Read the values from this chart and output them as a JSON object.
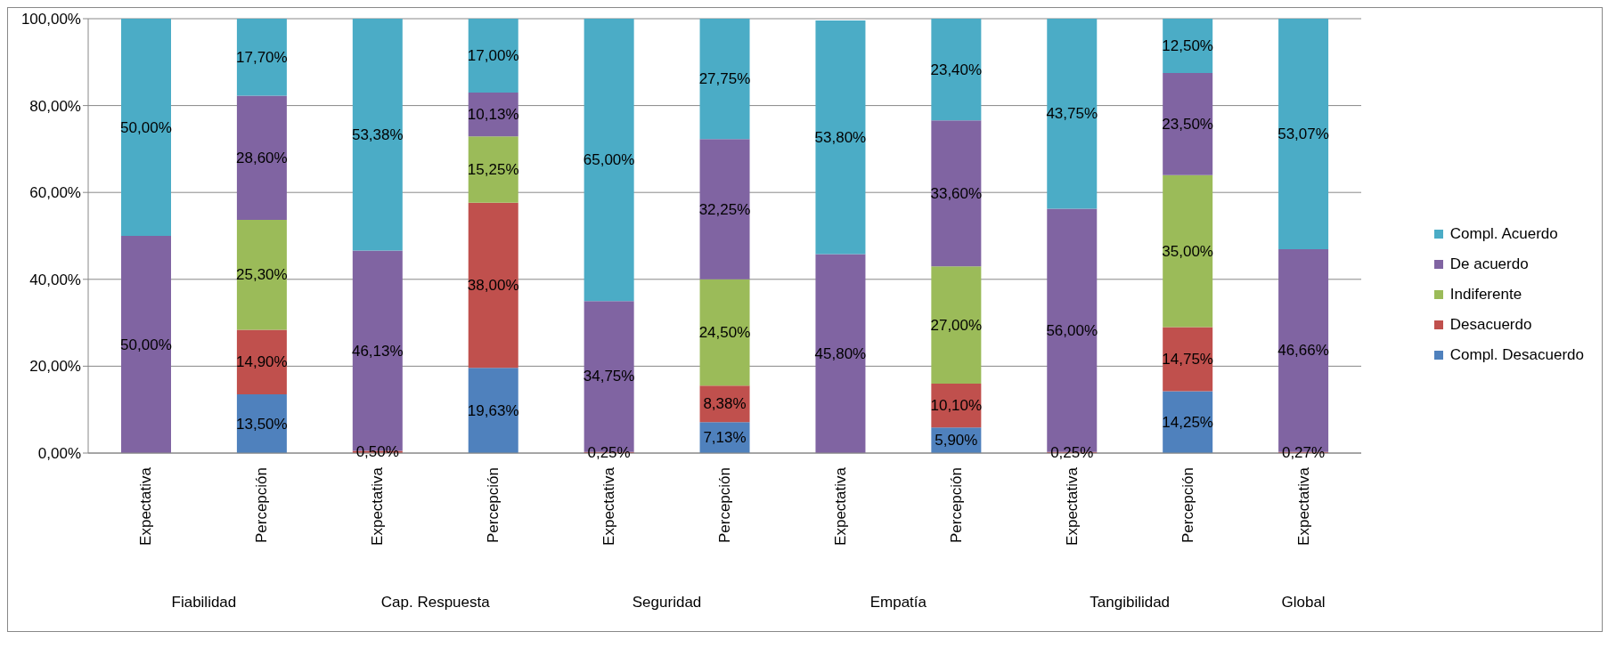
{
  "chart_data": {
    "type": "bar",
    "stacked": true,
    "categories": [
      "Expectativa",
      "Percepción",
      "Expectativa",
      "Percepción",
      "Expectativa",
      "Percepción",
      "Expectativa",
      "Percepción",
      "Expectativa",
      "Percepción",
      "Expectativa"
    ],
    "annotations": [
      "Fiabilidad",
      "Cap. Respuesta",
      "Seguridad",
      "Empatía",
      "Tangibilidad",
      "Global"
    ],
    "ylim": [
      0,
      100
    ],
    "yticks": [
      {
        "value": 0,
        "label": "0,00%"
      },
      {
        "value": 20,
        "label": "20,00%"
      },
      {
        "value": 40,
        "label": "40,00%"
      },
      {
        "value": 60,
        "label": "60,00%"
      },
      {
        "value": 80,
        "label": "80,00%"
      },
      {
        "value": 100,
        "label": "100,00%"
      }
    ],
    "grid": "y",
    "legend": "right",
    "series": [
      {
        "name": "Compl. Desacuerdo",
        "color": "#4f81bd",
        "values": [
          null,
          13.5,
          null,
          19.63,
          null,
          7.13,
          null,
          5.9,
          null,
          14.25,
          null
        ],
        "value_labels": [
          null,
          "13,50%",
          null,
          "19,63%",
          null,
          "7,13%",
          null,
          "5,90%",
          null,
          "14,25%",
          null
        ]
      },
      {
        "name": "Desacuerdo",
        "color": "#c0504d",
        "values": [
          null,
          14.9,
          0.5,
          38.0,
          0.25,
          8.38,
          null,
          10.1,
          0.25,
          14.75,
          0.27
        ],
        "value_labels": [
          null,
          "14,90%",
          "0,50%",
          "38,00%",
          "0,25%",
          "8,38%",
          null,
          "10,10%",
          "0,25%",
          "14,75%",
          "0,27%"
        ]
      },
      {
        "name": "Indiferente",
        "color": "#9bbb59",
        "values": [
          null,
          25.3,
          null,
          15.25,
          null,
          24.5,
          null,
          27.0,
          null,
          35.0,
          null
        ],
        "value_labels": [
          null,
          "25,30%",
          null,
          "15,25%",
          null,
          "24,50%",
          null,
          "27,00%",
          null,
          "35,00%",
          null
        ]
      },
      {
        "name": "De acuerdo",
        "color": "#8064a2",
        "values": [
          50.0,
          28.6,
          46.13,
          10.13,
          34.75,
          32.25,
          45.8,
          33.6,
          56.0,
          23.5,
          46.66
        ],
        "value_labels": [
          "50,00%",
          "28,60%",
          "46,13%",
          "10,13%",
          "34,75%",
          "32,25%",
          "45,80%",
          "33,60%",
          "56,00%",
          "23,50%",
          "46,66%"
        ]
      },
      {
        "name": "Compl. Acuerdo",
        "color": "#4bacc6",
        "values": [
          50.0,
          17.7,
          53.38,
          17.0,
          65.0,
          27.75,
          53.8,
          23.4,
          43.75,
          12.5,
          53.07
        ],
        "value_labels": [
          "50,00%",
          "17,70%",
          "53,38%",
          "17,00%",
          "65,00%",
          "27,75%",
          "53,80%",
          "23,40%",
          "43,75%",
          "12,50%",
          "53,07%"
        ]
      }
    ]
  }
}
